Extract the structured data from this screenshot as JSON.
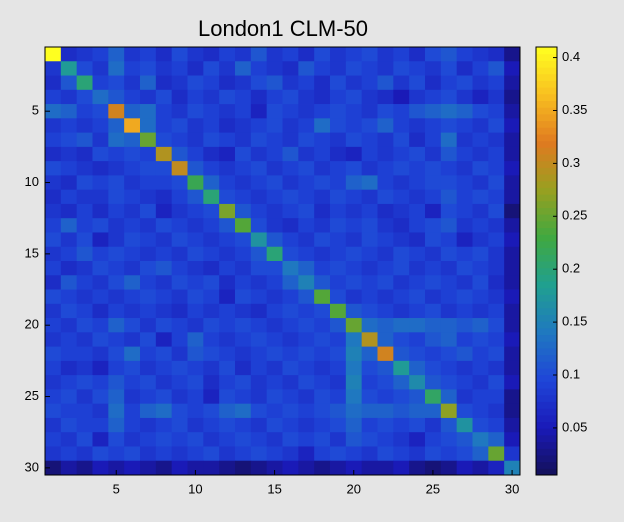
{
  "chart_data": {
    "type": "heatmap",
    "title": "London1 CLM-50",
    "xlim": [
      0.5,
      30.5
    ],
    "ylim": [
      0.5,
      30.5
    ],
    "xticks": [
      5,
      10,
      15,
      20,
      25,
      30
    ],
    "yticks": [
      5,
      10,
      15,
      20,
      25,
      30
    ],
    "clim": [
      0.0055,
      0.41
    ],
    "cticks": [
      0.05,
      0.1,
      0.15,
      0.2,
      0.25,
      0.3,
      0.35,
      0.4
    ],
    "colormap": [
      "#141058",
      "#1a1ab8",
      "#1f45d8",
      "#1f78c0",
      "#20a090",
      "#40a840",
      "#98a020",
      "#e07a20",
      "#f8c020",
      "#ffff20"
    ],
    "z": [
      [
        0.41,
        0.07,
        0.08,
        0.09,
        0.12,
        0.08,
        0.09,
        0.07,
        0.1,
        0.08,
        0.07,
        0.09,
        0.08,
        0.11,
        0.08,
        0.09,
        0.07,
        0.1,
        0.08,
        0.09,
        0.1,
        0.08,
        0.09,
        0.07,
        0.1,
        0.11,
        0.09,
        0.08,
        0.07,
        0.03
      ],
      [
        0.08,
        0.18,
        0.1,
        0.08,
        0.13,
        0.09,
        0.1,
        0.08,
        0.09,
        0.07,
        0.1,
        0.08,
        0.12,
        0.09,
        0.08,
        0.07,
        0.11,
        0.09,
        0.08,
        0.1,
        0.09,
        0.08,
        0.1,
        0.09,
        0.08,
        0.1,
        0.07,
        0.09,
        0.11,
        0.05
      ],
      [
        0.07,
        0.11,
        0.2,
        0.09,
        0.1,
        0.08,
        0.12,
        0.07,
        0.08,
        0.1,
        0.09,
        0.07,
        0.08,
        0.1,
        0.11,
        0.08,
        0.09,
        0.07,
        0.1,
        0.08,
        0.09,
        0.11,
        0.08,
        0.1,
        0.07,
        0.09,
        0.1,
        0.08,
        0.09,
        0.04
      ],
      [
        0.09,
        0.08,
        0.1,
        0.13,
        0.11,
        0.09,
        0.08,
        0.1,
        0.07,
        0.09,
        0.08,
        0.1,
        0.09,
        0.07,
        0.09,
        0.1,
        0.08,
        0.07,
        0.09,
        0.1,
        0.08,
        0.07,
        0.05,
        0.08,
        0.09,
        0.1,
        0.08,
        0.06,
        0.08,
        0.03
      ],
      [
        0.13,
        0.12,
        0.09,
        0.1,
        0.31,
        0.12,
        0.13,
        0.09,
        0.08,
        0.1,
        0.09,
        0.08,
        0.09,
        0.06,
        0.1,
        0.09,
        0.08,
        0.09,
        0.1,
        0.09,
        0.08,
        0.1,
        0.09,
        0.11,
        0.12,
        0.13,
        0.12,
        0.1,
        0.09,
        0.04
      ],
      [
        0.08,
        0.09,
        0.08,
        0.09,
        0.12,
        0.35,
        0.13,
        0.09,
        0.1,
        0.08,
        0.09,
        0.07,
        0.08,
        0.09,
        0.1,
        0.08,
        0.09,
        0.13,
        0.1,
        0.09,
        0.1,
        0.12,
        0.09,
        0.08,
        0.09,
        0.1,
        0.09,
        0.08,
        0.1,
        0.05
      ],
      [
        0.09,
        0.1,
        0.11,
        0.08,
        0.13,
        0.12,
        0.25,
        0.1,
        0.09,
        0.08,
        0.1,
        0.09,
        0.08,
        0.1,
        0.09,
        0.08,
        0.1,
        0.09,
        0.08,
        0.1,
        0.09,
        0.08,
        0.1,
        0.07,
        0.09,
        0.13,
        0.08,
        0.09,
        0.08,
        0.04
      ],
      [
        0.07,
        0.08,
        0.07,
        0.1,
        0.09,
        0.1,
        0.09,
        0.29,
        0.11,
        0.09,
        0.07,
        0.06,
        0.1,
        0.08,
        0.09,
        0.11,
        0.08,
        0.09,
        0.07,
        0.06,
        0.09,
        0.08,
        0.09,
        0.1,
        0.08,
        0.11,
        0.09,
        0.08,
        0.09,
        0.04
      ],
      [
        0.1,
        0.09,
        0.08,
        0.07,
        0.08,
        0.09,
        0.1,
        0.1,
        0.3,
        0.11,
        0.09,
        0.08,
        0.09,
        0.1,
        0.08,
        0.09,
        0.1,
        0.08,
        0.09,
        0.1,
        0.08,
        0.09,
        0.1,
        0.09,
        0.1,
        0.09,
        0.08,
        0.1,
        0.09,
        0.05
      ],
      [
        0.08,
        0.07,
        0.1,
        0.09,
        0.1,
        0.08,
        0.09,
        0.09,
        0.1,
        0.22,
        0.12,
        0.09,
        0.08,
        0.09,
        0.1,
        0.08,
        0.09,
        0.1,
        0.09,
        0.12,
        0.13,
        0.09,
        0.08,
        0.09,
        0.1,
        0.1,
        0.09,
        0.08,
        0.1,
        0.04
      ],
      [
        0.07,
        0.09,
        0.08,
        0.08,
        0.1,
        0.09,
        0.08,
        0.07,
        0.09,
        0.11,
        0.2,
        0.1,
        0.09,
        0.08,
        0.09,
        0.1,
        0.09,
        0.08,
        0.1,
        0.09,
        0.08,
        0.1,
        0.09,
        0.08,
        0.09,
        0.11,
        0.09,
        0.1,
        0.09,
        0.04
      ],
      [
        0.08,
        0.07,
        0.09,
        0.07,
        0.09,
        0.08,
        0.1,
        0.06,
        0.08,
        0.09,
        0.1,
        0.26,
        0.11,
        0.09,
        0.08,
        0.09,
        0.1,
        0.07,
        0.09,
        0.08,
        0.09,
        0.07,
        0.08,
        0.09,
        0.06,
        0.1,
        0.09,
        0.08,
        0.1,
        0.02
      ],
      [
        0.09,
        0.12,
        0.09,
        0.1,
        0.08,
        0.09,
        0.08,
        0.1,
        0.09,
        0.08,
        0.09,
        0.11,
        0.24,
        0.1,
        0.08,
        0.07,
        0.09,
        0.08,
        0.1,
        0.09,
        0.1,
        0.08,
        0.07,
        0.09,
        0.1,
        0.11,
        0.08,
        0.09,
        0.08,
        0.04
      ],
      [
        0.1,
        0.08,
        0.1,
        0.06,
        0.08,
        0.1,
        0.09,
        0.08,
        0.1,
        0.09,
        0.08,
        0.09,
        0.1,
        0.17,
        0.11,
        0.09,
        0.08,
        0.1,
        0.09,
        0.08,
        0.1,
        0.09,
        0.08,
        0.07,
        0.1,
        0.09,
        0.06,
        0.08,
        0.09,
        0.05
      ],
      [
        0.08,
        0.09,
        0.11,
        0.09,
        0.1,
        0.09,
        0.08,
        0.09,
        0.08,
        0.1,
        0.09,
        0.08,
        0.09,
        0.11,
        0.2,
        0.1,
        0.09,
        0.08,
        0.09,
        0.1,
        0.09,
        0.08,
        0.1,
        0.09,
        0.08,
        0.1,
        0.09,
        0.1,
        0.08,
        0.04
      ],
      [
        0.09,
        0.07,
        0.08,
        0.1,
        0.09,
        0.08,
        0.1,
        0.11,
        0.09,
        0.08,
        0.07,
        0.09,
        0.08,
        0.1,
        0.1,
        0.14,
        0.12,
        0.09,
        0.1,
        0.09,
        0.08,
        0.09,
        0.1,
        0.08,
        0.09,
        0.08,
        0.1,
        0.09,
        0.08,
        0.04
      ],
      [
        0.07,
        0.11,
        0.09,
        0.08,
        0.1,
        0.12,
        0.09,
        0.08,
        0.1,
        0.09,
        0.1,
        0.07,
        0.09,
        0.08,
        0.09,
        0.12,
        0.15,
        0.11,
        0.09,
        0.1,
        0.09,
        0.1,
        0.08,
        0.09,
        0.1,
        0.09,
        0.08,
        0.1,
        0.07,
        0.04
      ],
      [
        0.1,
        0.09,
        0.08,
        0.09,
        0.08,
        0.09,
        0.1,
        0.09,
        0.08,
        0.1,
        0.09,
        0.06,
        0.1,
        0.09,
        0.08,
        0.09,
        0.11,
        0.24,
        0.1,
        0.08,
        0.09,
        0.08,
        0.09,
        0.1,
        0.08,
        0.09,
        0.1,
        0.09,
        0.08,
        0.05
      ],
      [
        0.08,
        0.1,
        0.09,
        0.07,
        0.09,
        0.08,
        0.09,
        0.08,
        0.07,
        0.09,
        0.08,
        0.09,
        0.08,
        0.07,
        0.09,
        0.1,
        0.09,
        0.1,
        0.24,
        0.11,
        0.1,
        0.09,
        0.08,
        0.09,
        0.1,
        0.08,
        0.09,
        0.08,
        0.09,
        0.04
      ],
      [
        0.09,
        0.08,
        0.1,
        0.09,
        0.12,
        0.1,
        0.08,
        0.1,
        0.09,
        0.08,
        0.1,
        0.09,
        0.1,
        0.09,
        0.08,
        0.09,
        0.1,
        0.09,
        0.11,
        0.25,
        0.13,
        0.12,
        0.13,
        0.13,
        0.12,
        0.12,
        0.11,
        0.12,
        0.1,
        0.04
      ],
      [
        0.08,
        0.09,
        0.08,
        0.1,
        0.09,
        0.08,
        0.1,
        0.06,
        0.09,
        0.12,
        0.09,
        0.08,
        0.09,
        0.1,
        0.09,
        0.08,
        0.09,
        0.1,
        0.09,
        0.14,
        0.29,
        0.12,
        0.1,
        0.09,
        0.11,
        0.12,
        0.09,
        0.1,
        0.09,
        0.05
      ],
      [
        0.1,
        0.09,
        0.09,
        0.08,
        0.1,
        0.13,
        0.09,
        0.1,
        0.08,
        0.11,
        0.1,
        0.09,
        0.08,
        0.09,
        0.1,
        0.09,
        0.1,
        0.09,
        0.1,
        0.15,
        0.12,
        0.31,
        0.11,
        0.1,
        0.09,
        0.1,
        0.11,
        0.09,
        0.1,
        0.04
      ],
      [
        0.09,
        0.07,
        0.08,
        0.06,
        0.09,
        0.1,
        0.08,
        0.09,
        0.1,
        0.09,
        0.08,
        0.1,
        0.07,
        0.09,
        0.08,
        0.1,
        0.09,
        0.08,
        0.09,
        0.14,
        0.1,
        0.11,
        0.18,
        0.12,
        0.1,
        0.09,
        0.08,
        0.09,
        0.08,
        0.04
      ],
      [
        0.08,
        0.09,
        0.1,
        0.09,
        0.11,
        0.09,
        0.1,
        0.08,
        0.09,
        0.1,
        0.07,
        0.09,
        0.1,
        0.08,
        0.09,
        0.08,
        0.1,
        0.09,
        0.08,
        0.15,
        0.09,
        0.1,
        0.12,
        0.16,
        0.11,
        0.1,
        0.09,
        0.08,
        0.1,
        0.05
      ],
      [
        0.09,
        0.1,
        0.08,
        0.1,
        0.12,
        0.08,
        0.09,
        0.1,
        0.08,
        0.09,
        0.06,
        0.1,
        0.09,
        0.08,
        0.1,
        0.09,
        0.08,
        0.1,
        0.09,
        0.14,
        0.1,
        0.09,
        0.1,
        0.11,
        0.21,
        0.12,
        0.08,
        0.09,
        0.09,
        0.03
      ],
      [
        0.1,
        0.09,
        0.09,
        0.08,
        0.13,
        0.09,
        0.12,
        0.13,
        0.1,
        0.09,
        0.1,
        0.12,
        0.13,
        0.1,
        0.09,
        0.1,
        0.09,
        0.1,
        0.11,
        0.13,
        0.12,
        0.12,
        0.11,
        0.12,
        0.12,
        0.27,
        0.1,
        0.09,
        0.08,
        0.03
      ],
      [
        0.08,
        0.1,
        0.09,
        0.09,
        0.12,
        0.09,
        0.08,
        0.09,
        0.1,
        0.08,
        0.09,
        0.1,
        0.09,
        0.08,
        0.1,
        0.09,
        0.08,
        0.09,
        0.1,
        0.12,
        0.09,
        0.1,
        0.09,
        0.1,
        0.08,
        0.11,
        0.17,
        0.1,
        0.09,
        0.04
      ],
      [
        0.09,
        0.08,
        0.1,
        0.06,
        0.1,
        0.08,
        0.09,
        0.1,
        0.09,
        0.1,
        0.08,
        0.09,
        0.1,
        0.09,
        0.08,
        0.1,
        0.09,
        0.1,
        0.08,
        0.11,
        0.1,
        0.09,
        0.08,
        0.06,
        0.09,
        0.1,
        0.11,
        0.14,
        0.12,
        0.05
      ],
      [
        0.08,
        0.09,
        0.08,
        0.1,
        0.09,
        0.1,
        0.08,
        0.09,
        0.08,
        0.09,
        0.1,
        0.08,
        0.09,
        0.1,
        0.09,
        0.08,
        0.06,
        0.09,
        0.1,
        0.09,
        0.08,
        0.1,
        0.09,
        0.08,
        0.1,
        0.09,
        0.1,
        0.12,
        0.25,
        0.08
      ],
      [
        0.02,
        0.04,
        0.03,
        0.05,
        0.04,
        0.05,
        0.04,
        0.03,
        0.05,
        0.04,
        0.04,
        0.03,
        0.02,
        0.03,
        0.04,
        0.05,
        0.04,
        0.03,
        0.04,
        0.05,
        0.04,
        0.04,
        0.05,
        0.03,
        0.02,
        0.03,
        0.05,
        0.04,
        0.06,
        0.15
      ]
    ]
  }
}
